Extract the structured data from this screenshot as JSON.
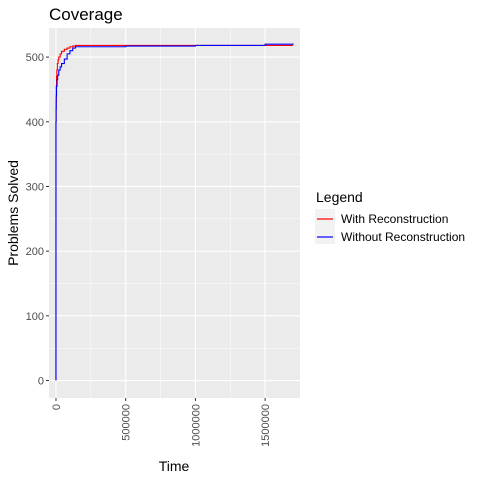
{
  "chart_data": {
    "type": "line",
    "title": "Coverage",
    "xlabel": "Time",
    "ylabel": "Problems Solved",
    "xlim": [
      -50000,
      1750000
    ],
    "ylim": [
      -27,
      545
    ],
    "xticks": [
      0,
      500000,
      1000000,
      1500000
    ],
    "xtick_labels": [
      "0",
      "500000",
      "1000000",
      "1500000"
    ],
    "yticks": [
      0,
      100,
      200,
      300,
      400,
      500
    ],
    "ytick_labels": [
      "0",
      "100",
      "200",
      "300",
      "400",
      "500"
    ],
    "grid": true,
    "legend": {
      "title": "Legend",
      "position": "right"
    },
    "series": [
      {
        "name": "With Reconstruction",
        "color": "#ff0000",
        "x": [
          0,
          0,
          800,
          2000,
          4000,
          6000,
          10000,
          15000,
          20000,
          30000,
          40000,
          60000,
          80000,
          100000,
          120000,
          140000,
          1700000
        ],
        "y": [
          0,
          400,
          430,
          455,
          470,
          480,
          490,
          496,
          500,
          505,
          509,
          512,
          514,
          516,
          517,
          518,
          518
        ]
      },
      {
        "name": "Without Reconstruction",
        "color": "#0000ff",
        "x": [
          0,
          0,
          1000,
          2000,
          4000,
          8000,
          12000,
          20000,
          30000,
          40000,
          60000,
          80000,
          100000,
          120000,
          140000,
          500000,
          1000000,
          1500000,
          1700000
        ],
        "y": [
          0,
          400,
          420,
          440,
          455,
          465,
          472,
          480,
          485,
          490,
          497,
          505,
          510,
          514,
          516,
          517,
          518,
          520,
          521
        ]
      }
    ]
  }
}
